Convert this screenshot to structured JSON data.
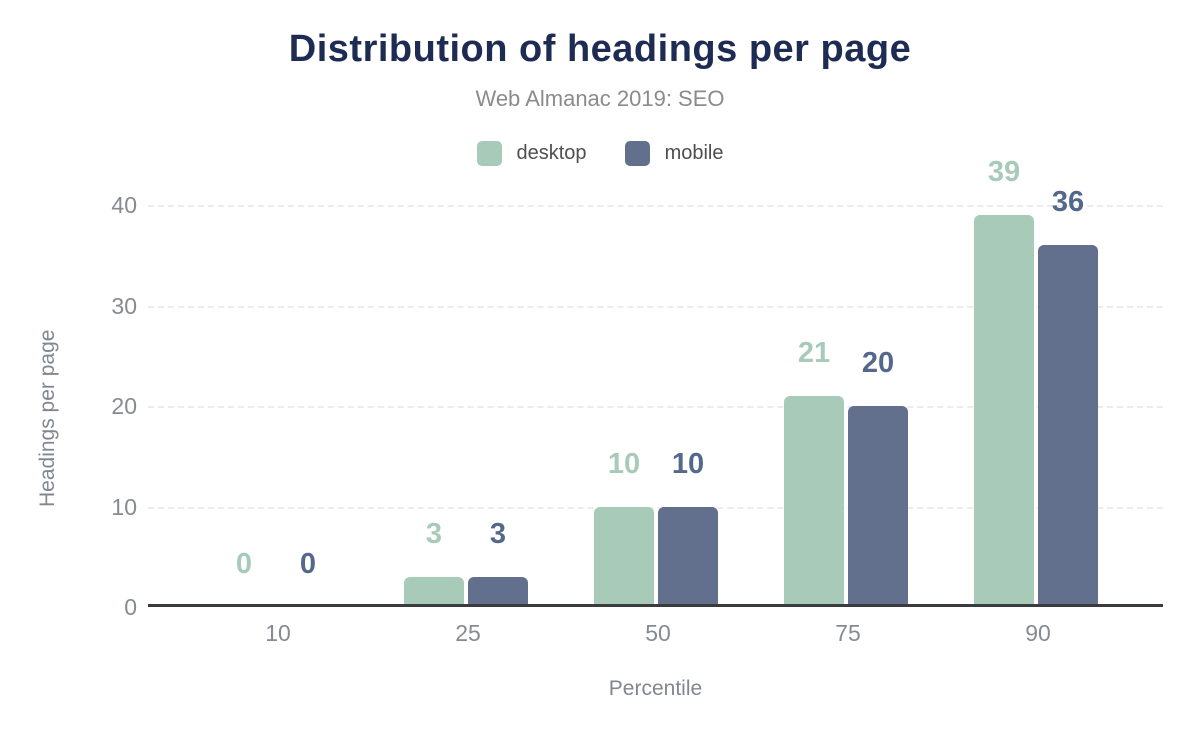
{
  "header": {
    "title": "Distribution of headings per page",
    "subtitle": "Web Almanac 2019: SEO"
  },
  "colors": {
    "title": "#1e2b52",
    "subtitle": "#8b8b8b",
    "tick_text": "#868b91",
    "axis_title_text": "#82878d",
    "axis_line": "#3a3b3f",
    "gridline": "#ececec",
    "desktop": "#a8cab9",
    "mobile": "#62708e",
    "desktop_label": "#a8cab9",
    "mobile_label": "#54688c"
  },
  "chart_data": {
    "type": "bar",
    "title": "Distribution of headings per page",
    "subtitle": "Web Almanac 2019: SEO",
    "categories": [
      "10",
      "25",
      "50",
      "75",
      "90"
    ],
    "series": [
      {
        "name": "desktop",
        "color": "#a8cab9",
        "label_color": "#a8cab9",
        "values": [
          0,
          3,
          10,
          21,
          39
        ]
      },
      {
        "name": "mobile",
        "color": "#62708e",
        "label_color": "#54688c",
        "values": [
          0,
          3,
          10,
          20,
          36
        ]
      }
    ],
    "xlabel": "Percentile",
    "ylabel": "Headings per page",
    "yticks": [
      0,
      10,
      20,
      30,
      40
    ],
    "ylim": [
      0,
      40
    ],
    "grid": "horizontal-dashed",
    "legend_position": "top",
    "data_labels": "above-bars"
  }
}
